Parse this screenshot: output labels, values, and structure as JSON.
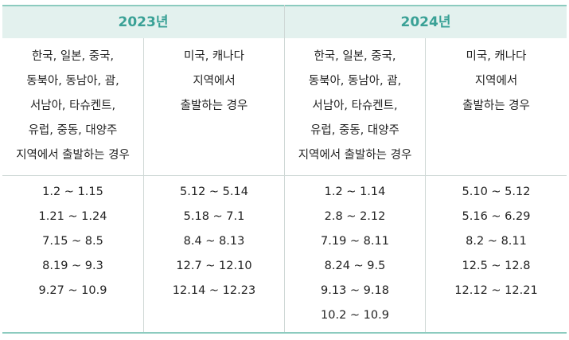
{
  "years": [
    "2023년",
    "2024년"
  ],
  "headers": {
    "asia": [
      "한국, 일본, 중국,",
      "동북아, 동남아, 괌,",
      "서남아, 타슈켄트,",
      "유럽, 중동, 대양주",
      "지역에서 출발하는 경우"
    ],
    "america": [
      "미국, 캐나다",
      "지역에서",
      "출발하는 경우"
    ]
  },
  "periods": {
    "y2023_asia": [
      "1.2 ~ 1.15",
      "1.21 ~ 1.24",
      "7.15 ~ 8.5",
      "8.19 ~ 9.3",
      "9.27 ~ 10.9"
    ],
    "y2023_america": [
      "5.12 ~ 5.14",
      "5.18 ~ 7.1",
      "8.4 ~ 8.13",
      "12.7 ~ 12.10",
      "12.14 ~ 12.23"
    ],
    "y2024_asia": [
      "1.2 ~ 1.14",
      "2.8 ~ 2.12",
      "7.19 ~ 8.11",
      "8.24 ~ 9.5",
      "9.13 ~ 9.18",
      "10.2 ~ 10.9"
    ],
    "y2024_america": [
      "5.10 ~ 5.12",
      "5.16 ~ 6.29",
      "8.2 ~ 8.11",
      "12.5 ~ 12.8",
      "12.12 ~ 12.21"
    ]
  }
}
